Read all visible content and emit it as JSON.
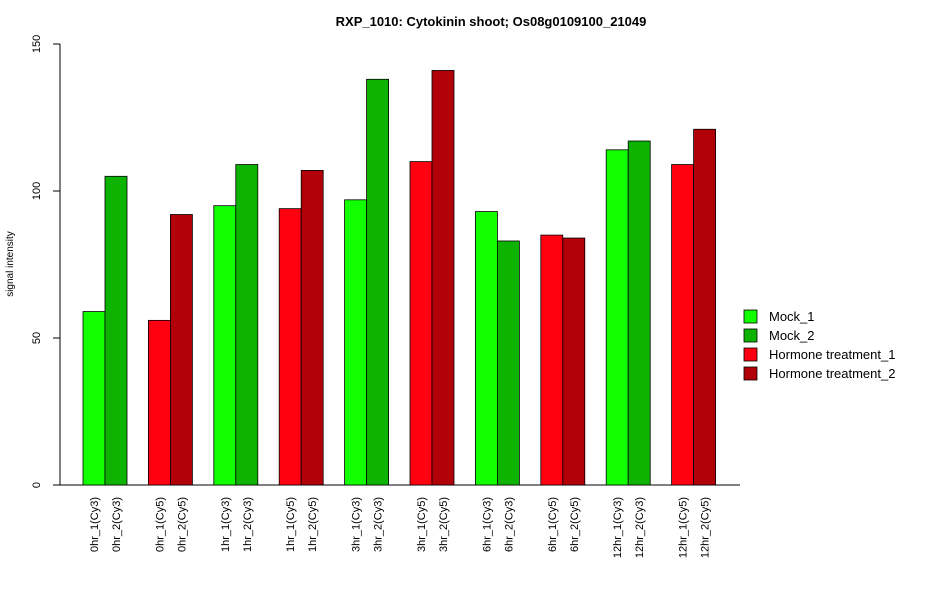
{
  "chart_data": {
    "type": "bar",
    "title": "RXP_1010: Cytokinin shoot; Os08g0109100_21049",
    "xlabel": "",
    "ylabel": "signal intensity",
    "ylim": [
      0,
      150
    ],
    "yticks": [
      0,
      50,
      100,
      150
    ],
    "grid": false,
    "legend_position": "right",
    "legend": [
      {
        "name": "Mock_1",
        "color": "#11ff00"
      },
      {
        "name": "Mock_2",
        "color": "#0db300"
      },
      {
        "name": "Hormone treatment_1",
        "color": "#ff0010"
      },
      {
        "name": "Hormone treatment_2",
        "color": "#b20008"
      }
    ],
    "groups": [
      {
        "bars": [
          {
            "label": "0hr_1(Cy3)",
            "value": 59,
            "color": "#11ff00"
          },
          {
            "label": "0hr_2(Cy3)",
            "value": 105,
            "color": "#0db300"
          }
        ]
      },
      {
        "bars": [
          {
            "label": "0hr_1(Cy5)",
            "value": 56,
            "color": "#ff0010"
          },
          {
            "label": "0hr_2(Cy5)",
            "value": 92,
            "color": "#b20008"
          }
        ]
      },
      {
        "bars": [
          {
            "label": "1hr_1(Cy3)",
            "value": 95,
            "color": "#11ff00"
          },
          {
            "label": "1hr_2(Cy3)",
            "value": 109,
            "color": "#0db300"
          }
        ]
      },
      {
        "bars": [
          {
            "label": "1hr_1(Cy5)",
            "value": 94,
            "color": "#ff0010"
          },
          {
            "label": "1hr_2(Cy5)",
            "value": 107,
            "color": "#b20008"
          }
        ]
      },
      {
        "bars": [
          {
            "label": "3hr_1(Cy3)",
            "value": 97,
            "color": "#11ff00"
          },
          {
            "label": "3hr_2(Cy3)",
            "value": 138,
            "color": "#0db300"
          }
        ]
      },
      {
        "bars": [
          {
            "label": "3hr_1(Cy5)",
            "value": 110,
            "color": "#ff0010"
          },
          {
            "label": "3hr_2(Cy5)",
            "value": 141,
            "color": "#b20008"
          }
        ]
      },
      {
        "bars": [
          {
            "label": "6hr_1(Cy3)",
            "value": 93,
            "color": "#11ff00"
          },
          {
            "label": "6hr_2(Cy3)",
            "value": 83,
            "color": "#0db300"
          }
        ]
      },
      {
        "bars": [
          {
            "label": "6hr_1(Cy5)",
            "value": 85,
            "color": "#ff0010"
          },
          {
            "label": "6hr_2(Cy5)",
            "value": 84,
            "color": "#b20008"
          }
        ]
      },
      {
        "bars": [
          {
            "label": "12hr_1(Cy3)",
            "value": 114,
            "color": "#11ff00"
          },
          {
            "label": "12hr_2(Cy3)",
            "value": 117,
            "color": "#0db300"
          }
        ]
      },
      {
        "bars": [
          {
            "label": "12hr_1(Cy5)",
            "value": 109,
            "color": "#ff0010"
          },
          {
            "label": "12hr_2(Cy5)",
            "value": 121,
            "color": "#b20008"
          }
        ]
      }
    ]
  }
}
